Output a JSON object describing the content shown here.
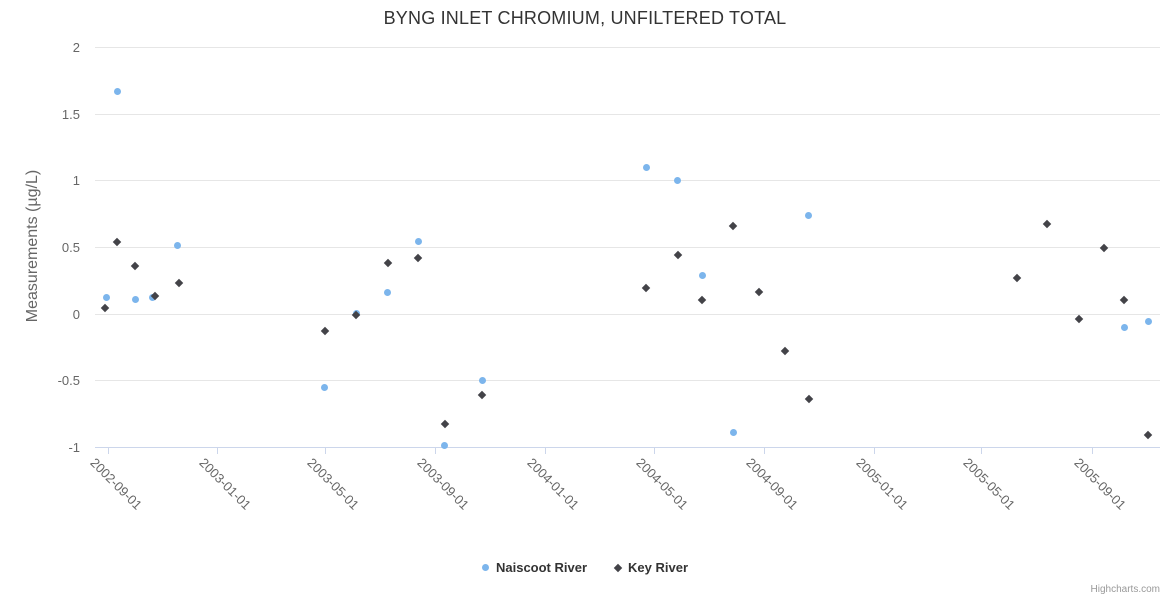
{
  "title": "BYNG INLET CHROMIUM, UNFILTERED TOTAL",
  "credits": "Highcharts.com",
  "colors": {
    "naiscoot_blue": "#7cb5ec",
    "key_dark": "#434348",
    "grid": "#e6e6e6",
    "axis_line": "#ccd6eb",
    "axis_text": "#666666",
    "title_text": "#333333"
  },
  "legend": {
    "items": [
      {
        "label": "Naiscoot River",
        "marker": "circle"
      },
      {
        "label": "Key River",
        "marker": "diamond"
      }
    ]
  },
  "chart_data": {
    "type": "scatter",
    "title": "BYNG INLET CHROMIUM, UNFILTERED TOTAL",
    "xlabel": "",
    "ylabel": "Measurements (µg/L)",
    "ylim": [
      -1,
      2
    ],
    "ytick_values": [
      2,
      1.5,
      1,
      0.5,
      0,
      -0.5,
      -1
    ],
    "ytick_labels": [
      "2",
      "1.5",
      "1",
      "0.5",
      "0",
      "-0.5",
      "-1"
    ],
    "xticks": [
      "2002-09-01",
      "2003-01-01",
      "2003-05-01",
      "2003-09-01",
      "2004-01-01",
      "2004-05-01",
      "2004-09-01",
      "2005-01-01",
      "2005-05-01",
      "2005-09-01"
    ],
    "x_range": [
      "2002-08-18",
      "2005-11-16"
    ],
    "grid": true,
    "legend_position": "bottom",
    "series": [
      {
        "name": "Naiscoot River",
        "marker": "circle",
        "color": "#7cb5ec",
        "points": [
          [
            "2002-08-31",
            0.12
          ],
          [
            "2002-09-12",
            1.67
          ],
          [
            "2002-10-02",
            0.11
          ],
          [
            "2002-10-21",
            0.12
          ],
          [
            "2002-11-18",
            0.51
          ],
          [
            "2003-05-01",
            -0.55
          ],
          [
            "2003-06-05",
            0.0
          ],
          [
            "2003-07-10",
            0.16
          ],
          [
            "2003-08-13",
            0.54
          ],
          [
            "2003-09-11",
            -0.99
          ],
          [
            "2003-10-24",
            -0.5
          ],
          [
            "2004-04-23",
            1.1
          ],
          [
            "2004-05-28",
            1.0
          ],
          [
            "2004-06-24",
            0.29
          ],
          [
            "2004-07-29",
            -0.89
          ],
          [
            "2004-10-21",
            0.74
          ],
          [
            "2005-10-07",
            -0.1
          ],
          [
            "2005-11-03",
            -0.06
          ]
        ]
      },
      {
        "name": "Key River",
        "marker": "diamond",
        "color": "#434348",
        "points": [
          [
            "2002-08-29",
            0.04
          ],
          [
            "2002-09-12",
            0.54
          ],
          [
            "2002-10-01",
            0.36
          ],
          [
            "2002-10-24",
            0.13
          ],
          [
            "2002-11-19",
            0.23
          ],
          [
            "2003-05-01",
            -0.13
          ],
          [
            "2003-06-05",
            -0.01
          ],
          [
            "2003-07-10",
            0.38
          ],
          [
            "2003-08-13",
            0.42
          ],
          [
            "2003-09-12",
            -0.83
          ],
          [
            "2003-10-23",
            -0.61
          ],
          [
            "2004-04-23",
            0.19
          ],
          [
            "2004-05-28",
            0.44
          ],
          [
            "2004-06-24",
            0.1
          ],
          [
            "2004-07-29",
            0.66
          ],
          [
            "2004-08-26",
            0.16
          ],
          [
            "2004-09-24",
            -0.28
          ],
          [
            "2004-10-21",
            -0.64
          ],
          [
            "2005-06-10",
            0.27
          ],
          [
            "2005-07-13",
            0.67
          ],
          [
            "2005-08-18",
            -0.04
          ],
          [
            "2005-09-15",
            0.49
          ],
          [
            "2005-10-07",
            0.1
          ],
          [
            "2005-11-03",
            -0.91
          ]
        ]
      }
    ]
  }
}
